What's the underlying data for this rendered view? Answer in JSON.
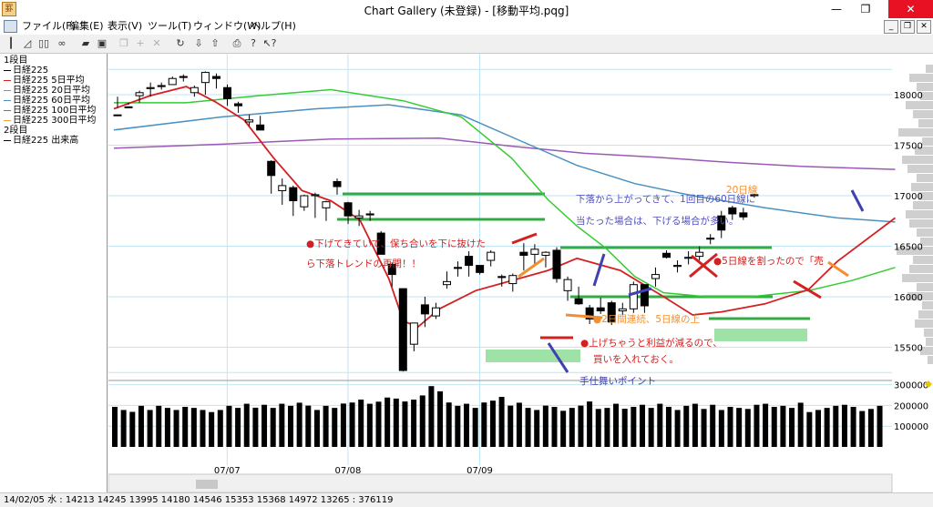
{
  "window": {
    "title": "Chart Gallery (未登録) - [移動平均.pqg]",
    "icon_name": "app-icon"
  },
  "menu": [
    "ファイル(F)",
    "編集(E)",
    "表示(V)",
    "ツール(T)",
    "ウィンドウ(W)",
    "ヘルプ(H)"
  ],
  "toolbar_icons": [
    "candlestick-icon",
    "line-chart-icon",
    "bar-pair-icon",
    "binoculars-icon",
    "open-folder-icon",
    "save-icon",
    "copy-icon",
    "crosshair-icon",
    "delete-icon",
    "zoom-icon",
    "download-icon",
    "upload-icon",
    "print-icon",
    "help-icon",
    "context-help-icon"
  ],
  "legend": {
    "pane1_label": "1段目",
    "pane2_label": "2段目",
    "items": [
      {
        "label": "日経225",
        "color": "#000000"
      },
      {
        "label": "日経225 5日平均",
        "color": "#d42020"
      },
      {
        "label": "日経225 20日平均",
        "color": "#33cc33"
      },
      {
        "label": "日経225 60日平均",
        "color": "#4a90c0"
      },
      {
        "label": "日経225 100日平均",
        "color": "#9b59b6"
      },
      {
        "label": "日経225 300日平均",
        "color": "#f0a050"
      }
    ],
    "pane2_items": [
      {
        "label": "日経225 出来高",
        "color": "#000000"
      }
    ]
  },
  "status": "14/02/05 水 : 14213 14245 13995 14180 14546 15353 15368 14972 13265 : 376119",
  "chart_data": {
    "type": "candlestick",
    "price_axis": {
      "ticks": [
        18000,
        17500,
        17000,
        16500,
        16000,
        15500
      ]
    },
    "volume_axis": {
      "ticks": [
        300000,
        200000,
        100000
      ]
    },
    "x_labels": [
      {
        "i": 7,
        "label": "07/07"
      },
      {
        "i": 18,
        "label": "07/08"
      },
      {
        "i": 30,
        "label": "07/09"
      }
    ],
    "candles": [
      [
        17800,
        17800,
        17980,
        17870
      ],
      [
        17880,
        17870,
        17920,
        17900
      ],
      [
        17990,
        18020,
        18040,
        17920
      ],
      [
        18060,
        18070,
        18120,
        17980
      ],
      [
        18090,
        18080,
        18120,
        18050
      ],
      [
        18100,
        18160,
        18180,
        18120
      ],
      [
        18180,
        18170,
        18200,
        18130
      ],
      [
        18020,
        18070,
        18090,
        17980
      ],
      [
        18120,
        18220,
        18230,
        18000
      ],
      [
        18180,
        18160,
        18210,
        18060
      ],
      [
        18070,
        17960,
        18100,
        17890
      ],
      [
        17910,
        17890,
        17930,
        17820
      ],
      [
        17730,
        17750,
        17800,
        17690
      ],
      [
        17700,
        17650,
        17790,
        17660
      ],
      [
        17340,
        17200,
        17350,
        17020
      ],
      [
        17050,
        17100,
        17170,
        16910
      ],
      [
        17080,
        16950,
        17100,
        16800
      ],
      [
        16890,
        17000,
        17010,
        16850
      ],
      [
        17000,
        17010,
        17030,
        16780
      ],
      [
        16880,
        16940,
        16950,
        16750
      ],
      [
        17140,
        17090,
        17170,
        17010
      ],
      [
        16930,
        16800,
        16940,
        16720
      ],
      [
        16780,
        16800,
        16860,
        16700
      ],
      [
        16820,
        16810,
        16850,
        16750
      ],
      [
        16630,
        16420,
        16650,
        16420
      ],
      [
        16320,
        16220,
        16340,
        16100
      ],
      [
        16080,
        15270,
        16080,
        15260
      ],
      [
        15530,
        15740,
        15740,
        15460
      ],
      [
        15920,
        15830,
        16000,
        15700
      ],
      [
        15810,
        15890,
        15940,
        15780
      ],
      [
        16120,
        16150,
        16250,
        16080
      ],
      [
        16290,
        16280,
        16350,
        16200
      ],
      [
        16400,
        16310,
        16450,
        16200
      ],
      [
        16310,
        16240,
        16290,
        16220
      ],
      [
        16360,
        16440,
        16460,
        16300
      ],
      [
        16200,
        16190,
        16220,
        16100
      ],
      [
        16130,
        16210,
        16230,
        16050
      ],
      [
        16440,
        16410,
        16530,
        16260
      ],
      [
        16420,
        16470,
        16520,
        16320
      ],
      [
        16410,
        16440,
        16450,
        16290
      ],
      [
        16460,
        16180,
        16490,
        16140
      ],
      [
        16060,
        16170,
        16200,
        15960
      ],
      [
        15980,
        15930,
        16100,
        15920
      ],
      [
        15890,
        15780,
        15920,
        15730
      ],
      [
        15890,
        15860,
        15990,
        15830
      ],
      [
        15940,
        15750,
        15960,
        15720
      ],
      [
        15860,
        15880,
        15940,
        15820
      ],
      [
        15880,
        16120,
        16150,
        15840
      ],
      [
        16120,
        15910,
        16120,
        15840
      ],
      [
        16180,
        16220,
        16290,
        16100
      ],
      [
        16430,
        16390,
        16460,
        16380
      ],
      [
        16300,
        16310,
        16360,
        16240
      ],
      [
        16380,
        16390,
        16450,
        16320
      ],
      [
        16400,
        16440,
        16500,
        16360
      ],
      [
        16580,
        16570,
        16620,
        16520
      ],
      [
        16800,
        16660,
        16850,
        16580
      ],
      [
        16880,
        16820,
        16900,
        16760
      ],
      [
        16830,
        16790,
        16880,
        16760
      ],
      [
        17000,
        17010,
        17020,
        16980
      ]
    ],
    "ma5": [
      [
        0,
        17860
      ],
      [
        5,
        17990
      ],
      [
        10,
        18080
      ],
      [
        14,
        17930
      ],
      [
        18,
        17750
      ],
      [
        22,
        17380
      ],
      [
        26,
        17050
      ],
      [
        30,
        16950
      ],
      [
        34,
        16760
      ],
      [
        38,
        16180
      ],
      [
        40,
        15760
      ],
      [
        42,
        15700
      ],
      [
        45,
        15880
      ],
      [
        50,
        16060
      ],
      [
        55,
        16160
      ],
      [
        60,
        16260
      ],
      [
        64,
        16380
      ],
      [
        70,
        16260
      ],
      [
        76,
        16000
      ],
      [
        80,
        15820
      ],
      [
        84,
        15850
      ],
      [
        90,
        15930
      ],
      [
        96,
        16070
      ],
      [
        100,
        16350
      ],
      [
        108,
        16780
      ]
    ],
    "ma20": [
      [
        0,
        17920
      ],
      [
        10,
        17920
      ],
      [
        20,
        17990
      ],
      [
        30,
        18050
      ],
      [
        40,
        17940
      ],
      [
        48,
        17780
      ],
      [
        55,
        17370
      ],
      [
        60,
        16960
      ],
      [
        64,
        16700
      ],
      [
        68,
        16480
      ],
      [
        72,
        16200
      ],
      [
        76,
        16040
      ],
      [
        82,
        16000
      ],
      [
        88,
        16000
      ],
      [
        96,
        16060
      ],
      [
        102,
        16160
      ],
      [
        108,
        16290
      ]
    ],
    "ma60": [
      [
        0,
        17650
      ],
      [
        15,
        17780
      ],
      [
        28,
        17860
      ],
      [
        38,
        17900
      ],
      [
        48,
        17800
      ],
      [
        56,
        17550
      ],
      [
        64,
        17300
      ],
      [
        72,
        17120
      ],
      [
        80,
        17000
      ],
      [
        90,
        16880
      ],
      [
        100,
        16780
      ],
      [
        108,
        16740
      ]
    ],
    "ma100": [
      [
        0,
        17470
      ],
      [
        15,
        17510
      ],
      [
        30,
        17560
      ],
      [
        45,
        17570
      ],
      [
        55,
        17490
      ],
      [
        65,
        17420
      ],
      [
        75,
        17380
      ],
      [
        85,
        17330
      ],
      [
        95,
        17290
      ],
      [
        108,
        17260
      ]
    ],
    "volume": [
      193000,
      178000,
      169000,
      198000,
      178000,
      198000,
      188000,
      178000,
      193000,
      188000,
      178000,
      168000,
      178000,
      198000,
      188000,
      208000,
      189000,
      203000,
      188000,
      208000,
      198000,
      213000,
      199000,
      178000,
      198000,
      188000,
      209000,
      214000,
      228000,
      208000,
      218000,
      238000,
      233000,
      219000,
      228000,
      248000,
      293000,
      268000,
      214000,
      198000,
      208000,
      188000,
      214000,
      223000,
      241000,
      199000,
      213000,
      188000,
      178000,
      199000,
      193000,
      174000,
      188000,
      199000,
      219000,
      183000,
      188000,
      208000,
      184000,
      193000,
      203000,
      188000,
      208000,
      193000,
      178000,
      198000,
      208000,
      183000,
      203000,
      178000,
      193000,
      188000,
      183000,
      203000,
      208000,
      193000,
      198000,
      188000,
      213000,
      168000,
      178000,
      188000,
      198000,
      203000,
      193000,
      173000,
      183000,
      198000
    ],
    "annotations": [
      {
        "text": "●下げてきていて、保ち合いを下に抜けた",
        "color": "#d42020"
      },
      {
        "text": "ら下落トレンドの再開！！",
        "color": "#d42020"
      },
      {
        "text": "●2日間連続、5日線の上",
        "color": "#f09030"
      },
      {
        "text": "●上げちゃうと利益が減るので、",
        "color": "#d42020"
      },
      {
        "text": "買いを入れておく。",
        "color": "#d42020"
      },
      {
        "text": "手仕舞いポイント",
        "color": "#4040b0"
      },
      {
        "text": "下落から上がってきて、1回目の60日線に",
        "color": "#5050c0"
      },
      {
        "text": "当たった場合は、下げる場合が多い。",
        "color": "#5050c0"
      },
      {
        "text": "20日線",
        "color": "#f09030"
      },
      {
        "text": "●5日線を割ったので「売",
        "color": "#d42020"
      }
    ]
  }
}
